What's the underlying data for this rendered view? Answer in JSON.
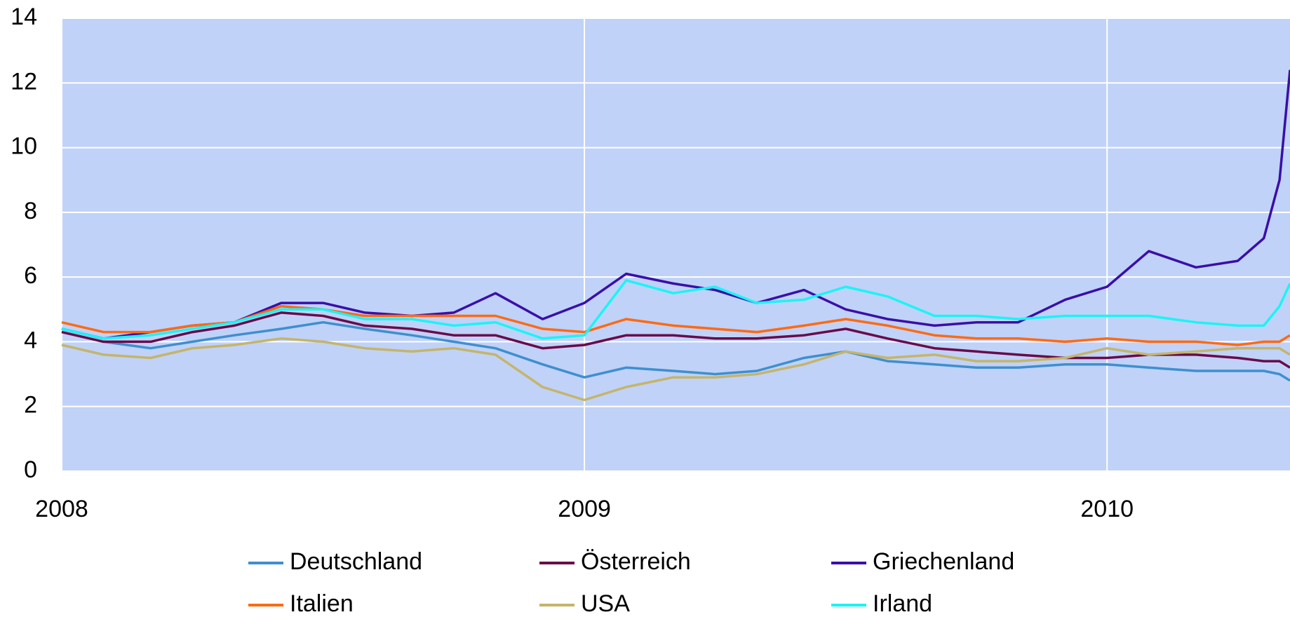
{
  "chart_data": {
    "type": "line",
    "x": [
      2008,
      2008.08,
      2008.17,
      2008.25,
      2008.33,
      2008.42,
      2008.5,
      2008.58,
      2008.67,
      2008.75,
      2008.83,
      2008.92,
      2009,
      2009.08,
      2009.17,
      2009.25,
      2009.33,
      2009.42,
      2009.5,
      2009.58,
      2009.67,
      2009.75,
      2009.83,
      2009.92,
      2010,
      2010.08,
      2010.17,
      2010.25,
      2010.3,
      2010.33,
      2010.35
    ],
    "xlim": [
      2008,
      2010.35
    ],
    "xticks": [
      2008,
      2009,
      2010
    ],
    "ylim": [
      0,
      14
    ],
    "yticks": [
      0,
      2,
      4,
      6,
      8,
      10,
      12,
      14
    ],
    "grid": true,
    "series": [
      {
        "name": "Deutschland",
        "color": "#3f8fce",
        "values": [
          4.3,
          4.0,
          3.8,
          4.0,
          4.2,
          4.4,
          4.6,
          4.4,
          4.2,
          4.0,
          3.8,
          3.3,
          2.9,
          3.2,
          3.1,
          3.0,
          3.1,
          3.5,
          3.7,
          3.4,
          3.3,
          3.2,
          3.2,
          3.3,
          3.3,
          3.2,
          3.1,
          3.1,
          3.1,
          3.0,
          2.8
        ]
      },
      {
        "name": "Österreich",
        "color": "#6a0a4a",
        "values": [
          4.3,
          4.0,
          4.0,
          4.3,
          4.5,
          4.9,
          4.8,
          4.5,
          4.4,
          4.2,
          4.2,
          3.8,
          3.9,
          4.2,
          4.2,
          4.1,
          4.1,
          4.2,
          4.4,
          4.1,
          3.8,
          3.7,
          3.6,
          3.5,
          3.5,
          3.6,
          3.6,
          3.5,
          3.4,
          3.4,
          3.2
        ]
      },
      {
        "name": "Griechenland",
        "color": "#3a0fa8",
        "values": [
          4.4,
          4.1,
          4.3,
          4.5,
          4.6,
          5.2,
          5.2,
          4.9,
          4.8,
          4.9,
          5.5,
          4.7,
          5.2,
          6.1,
          5.8,
          5.6,
          5.2,
          5.6,
          5.0,
          4.7,
          4.5,
          4.6,
          4.6,
          5.3,
          5.7,
          6.8,
          6.3,
          6.5,
          7.2,
          9.0,
          12.4
        ]
      },
      {
        "name": "Italien",
        "color": "#ff6a13",
        "values": [
          4.6,
          4.3,
          4.3,
          4.5,
          4.6,
          5.1,
          5.0,
          4.8,
          4.8,
          4.8,
          4.8,
          4.4,
          4.3,
          4.7,
          4.5,
          4.4,
          4.3,
          4.5,
          4.7,
          4.5,
          4.2,
          4.1,
          4.1,
          4.0,
          4.1,
          4.0,
          4.0,
          3.9,
          4.0,
          4.0,
          4.2
        ]
      },
      {
        "name": "USA",
        "color": "#c4b56a",
        "values": [
          3.9,
          3.6,
          3.5,
          3.8,
          3.9,
          4.1,
          4.0,
          3.8,
          3.7,
          3.8,
          3.6,
          2.6,
          2.2,
          2.6,
          2.9,
          2.9,
          3.0,
          3.3,
          3.7,
          3.5,
          3.6,
          3.4,
          3.4,
          3.5,
          3.8,
          3.6,
          3.7,
          3.8,
          3.8,
          3.8,
          3.6
        ]
      },
      {
        "name": "Irland",
        "color": "#19f5f5",
        "values": [
          4.4,
          4.1,
          4.2,
          4.4,
          4.6,
          5.0,
          5.0,
          4.7,
          4.7,
          4.5,
          4.6,
          4.1,
          4.2,
          5.9,
          5.5,
          5.7,
          5.2,
          5.3,
          5.7,
          5.4,
          4.8,
          4.8,
          4.7,
          4.8,
          4.8,
          4.8,
          4.6,
          4.5,
          4.5,
          5.1,
          5.8
        ]
      }
    ]
  }
}
